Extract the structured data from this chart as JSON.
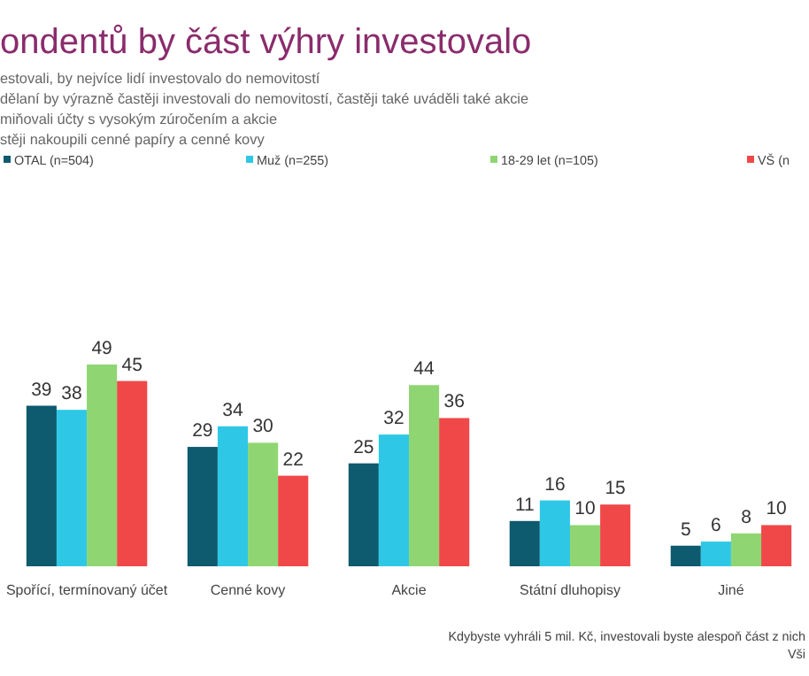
{
  "chart_data": {
    "type": "bar",
    "title": "ondentů by část výhry investovalo",
    "annotations": [
      "estovali, by nejvíce lidí investovalo do nemovitostí",
      "dělaní by výrazně častěji investovali do nemovitostí, častěji také uváděli také akcie",
      "miňovali účty s vysokým zúročením a akcie",
      "stěji nakoupili cenné papíry a cenné kovy",
      "Kdybyste vyhráli 5 mil. Kč, investovali byste alespoň část z nich",
      "Vši"
    ],
    "categories": [
      "Spořící, termínovaný účet",
      "Cenné kovy",
      "Akcie",
      "Státní dluhopisy",
      "Jiné"
    ],
    "series": [
      {
        "name": "OTAL (n=504)",
        "color": "#0e5a6e",
        "values": [
          39,
          29,
          25,
          11,
          5
        ]
      },
      {
        "name": "Muž (n=255)",
        "color": "#2ec8e6",
        "values": [
          38,
          34,
          32,
          16,
          6
        ]
      },
      {
        "name": "18-29 let (n=105)",
        "color": "#8fd672",
        "values": [
          49,
          30,
          44,
          10,
          8
        ]
      },
      {
        "name": "VŠ (n",
        "color": "#f04848",
        "values": [
          45,
          22,
          36,
          15,
          10
        ]
      }
    ],
    "data_labels": true,
    "legend": "top"
  }
}
